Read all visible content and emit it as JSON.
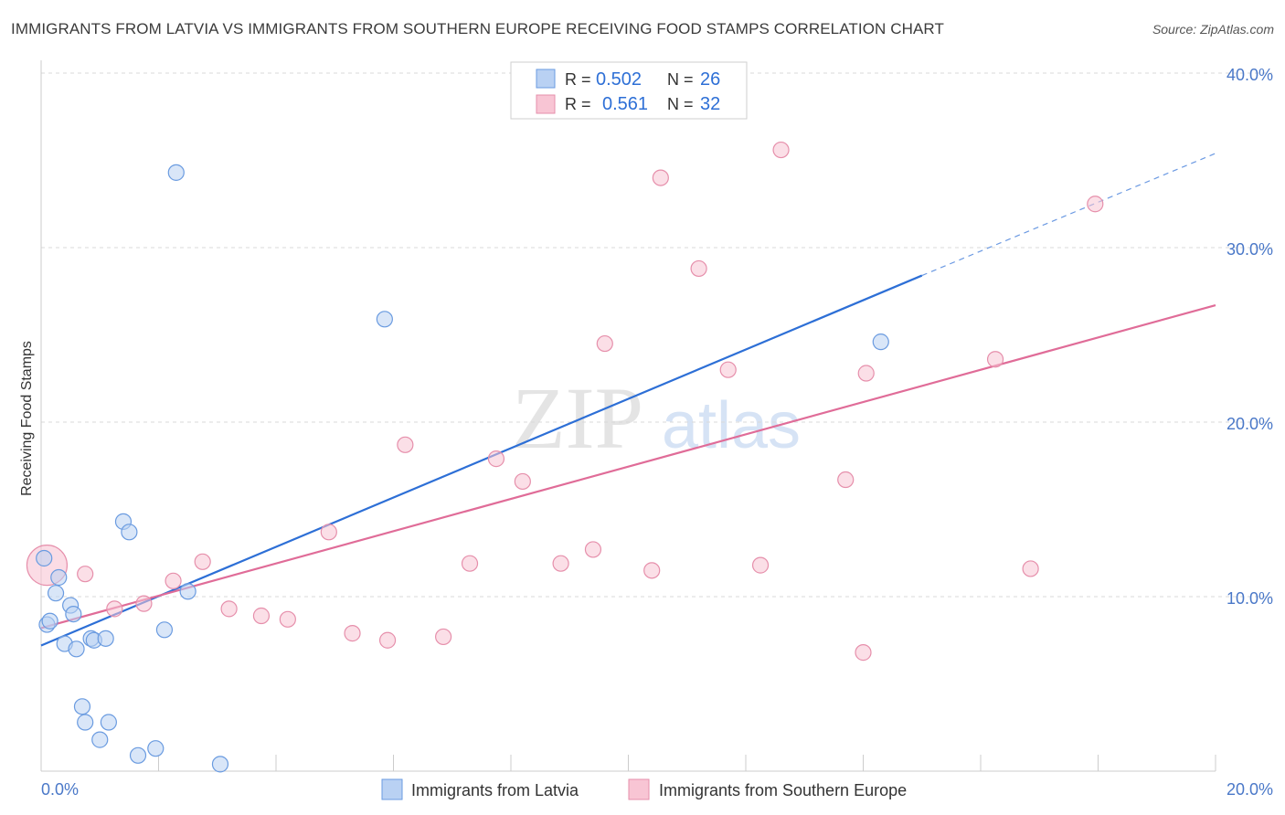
{
  "title": "IMMIGRANTS FROM LATVIA VS IMMIGRANTS FROM SOUTHERN EUROPE RECEIVING FOOD STAMPS CORRELATION CHART",
  "source": "Source: ZipAtlas.com",
  "watermark": {
    "zip": "ZIP",
    "atlas": "atlas"
  },
  "colors": {
    "blue_fill": "#b9d1f3",
    "blue_stroke": "#6a9be0",
    "blue_line": "#2d6fd6",
    "pink_fill": "#f8c5d4",
    "pink_stroke": "#e68fab",
    "pink_line": "#e06c98",
    "grid": "#d9d9d9",
    "tick_label": "#4a78c8"
  },
  "legend": {
    "rows": [
      {
        "r_label": "R = ",
        "r_value": "0.502",
        "n_label": "N = ",
        "n_value": "26"
      },
      {
        "r_label": "R = ",
        "r_value": "0.561",
        "n_label": "N = ",
        "n_value": "32"
      }
    ]
  },
  "chart_data": {
    "type": "scatter",
    "title": "IMMIGRANTS FROM LATVIA VS IMMIGRANTS FROM SOUTHERN EUROPE RECEIVING FOOD STAMPS CORRELATION CHART",
    "xlabel": "",
    "ylabel": "Receiving Food Stamps",
    "xlim": [
      0,
      20
    ],
    "ylim": [
      0,
      40
    ],
    "x_tick_labels": [
      "0.0%",
      "20.0%"
    ],
    "y_ticks": [
      10,
      20,
      30,
      40
    ],
    "y_tick_labels": [
      "10.0%",
      "20.0%",
      "30.0%",
      "40.0%"
    ],
    "grid": true,
    "legend_position": "top-center",
    "series": [
      {
        "name": "Immigrants from Latvia",
        "color": "#6a9be0",
        "points": [
          [
            0.05,
            12.2
          ],
          [
            0.1,
            8.4
          ],
          [
            0.15,
            8.6
          ],
          [
            0.25,
            10.2
          ],
          [
            0.3,
            11.1
          ],
          [
            0.4,
            7.3
          ],
          [
            0.5,
            9.5
          ],
          [
            0.55,
            9.0
          ],
          [
            0.6,
            7.0
          ],
          [
            0.7,
            3.7
          ],
          [
            0.75,
            2.8
          ],
          [
            0.85,
            7.6
          ],
          [
            0.9,
            7.5
          ],
          [
            1.0,
            1.8
          ],
          [
            1.1,
            7.6
          ],
          [
            1.15,
            2.8
          ],
          [
            1.4,
            14.3
          ],
          [
            1.5,
            13.7
          ],
          [
            1.65,
            0.9
          ],
          [
            1.95,
            1.3
          ],
          [
            2.1,
            8.1
          ],
          [
            2.3,
            34.3
          ],
          [
            2.5,
            10.3
          ],
          [
            3.05,
            0.4
          ],
          [
            5.85,
            25.9
          ],
          [
            14.3,
            24.6
          ]
        ],
        "trend": {
          "x": [
            0,
            15.0
          ],
          "y": [
            7.2,
            28.4
          ],
          "dashed_to": {
            "x": 20,
            "y": 35.4
          }
        }
      },
      {
        "name": "Immigrants from Southern Europe",
        "color": "#e68fab",
        "points": [
          [
            0.1,
            11.8
          ],
          [
            0.75,
            11.3
          ],
          [
            1.25,
            9.3
          ],
          [
            1.75,
            9.6
          ],
          [
            2.25,
            10.9
          ],
          [
            2.75,
            12.0
          ],
          [
            3.2,
            9.3
          ],
          [
            3.75,
            8.9
          ],
          [
            4.2,
            8.7
          ],
          [
            4.9,
            13.7
          ],
          [
            5.3,
            7.9
          ],
          [
            5.9,
            7.5
          ],
          [
            6.2,
            18.7
          ],
          [
            6.85,
            7.7
          ],
          [
            7.3,
            11.9
          ],
          [
            7.75,
            17.9
          ],
          [
            8.2,
            16.6
          ],
          [
            8.85,
            11.9
          ],
          [
            9.4,
            12.7
          ],
          [
            9.6,
            24.5
          ],
          [
            10.4,
            11.5
          ],
          [
            10.55,
            34.0
          ],
          [
            11.2,
            28.8
          ],
          [
            11.7,
            23.0
          ],
          [
            12.25,
            11.8
          ],
          [
            12.6,
            35.6
          ],
          [
            13.7,
            16.7
          ],
          [
            14.0,
            6.8
          ],
          [
            14.05,
            22.8
          ],
          [
            16.25,
            23.6
          ],
          [
            16.85,
            11.6
          ],
          [
            17.95,
            32.5
          ]
        ],
        "trend": {
          "x": [
            0,
            20
          ],
          "y": [
            8.2,
            26.7
          ]
        }
      }
    ]
  },
  "bottom_legend": [
    {
      "label": "Immigrants from Latvia"
    },
    {
      "label": "Immigrants from Southern Europe"
    }
  ]
}
